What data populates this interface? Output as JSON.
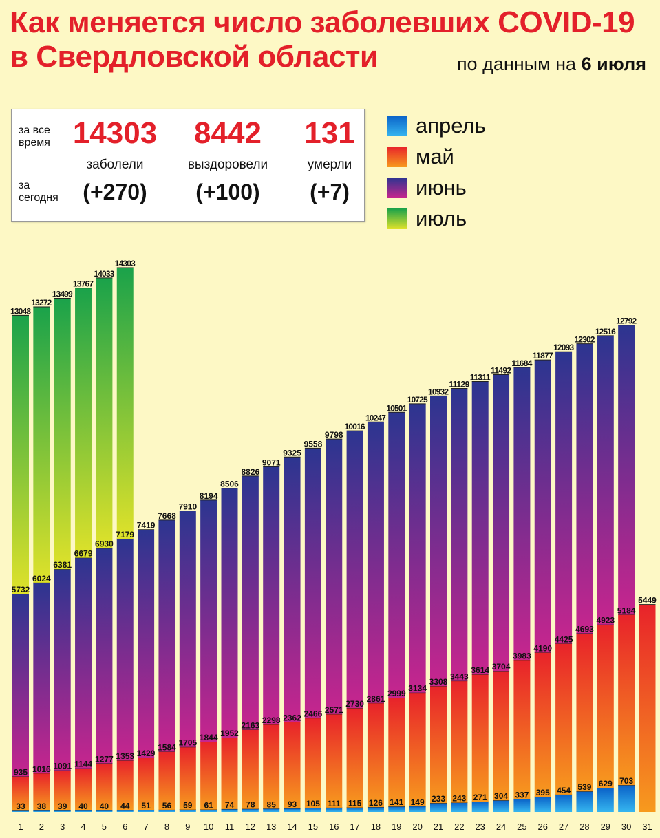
{
  "title_line1": "Как  меняется число  заболевших COVID-19",
  "title_line2": "в Свердловской области",
  "subtitle_prefix": "по данным на ",
  "subtitle_date": "6 июля",
  "stats": {
    "all_time_label_1": "за все",
    "all_time_label_2": "время",
    "today_label_1": "за",
    "today_label_2": "сегодня",
    "sick_total": "14303",
    "sick_label": "заболели",
    "sick_today": "(+270)",
    "recovered_total": "8442",
    "recovered_label": "выздоровели",
    "recovered_today": "(+100)",
    "died_total": "131",
    "died_label": "умерли",
    "died_today": "(+7)"
  },
  "legend": [
    {
      "label": "апрель",
      "color_top": "#0a62c8",
      "color_bottom": "#35b5ef"
    },
    {
      "label": "май",
      "color_top": "#e8232a",
      "color_bottom": "#f79a1e"
    },
    {
      "label": "июнь",
      "color_top": "#2c3590",
      "color_bottom": "#c7258e"
    },
    {
      "label": "июль",
      "color_top": "#1aa24a",
      "color_bottom": "#dfe22a"
    }
  ],
  "chart_data": {
    "type": "bar",
    "x": [
      1,
      2,
      3,
      4,
      5,
      6,
      7,
      8,
      9,
      10,
      11,
      12,
      13,
      14,
      15,
      16,
      17,
      18,
      19,
      20,
      21,
      22,
      23,
      24,
      25,
      26,
      27,
      28,
      29,
      30,
      31
    ],
    "series": [
      {
        "name": "апрель",
        "values": [
          33,
          38,
          39,
          40,
          40,
          44,
          51,
          56,
          59,
          61,
          74,
          78,
          85,
          93,
          105,
          111,
          115,
          126,
          141,
          149,
          233,
          243,
          271,
          304,
          337,
          395,
          454,
          539,
          629,
          703,
          null
        ]
      },
      {
        "name": "май",
        "values": [
          935,
          1016,
          1091,
          1144,
          1277,
          1353,
          1429,
          1584,
          1705,
          1844,
          1952,
          2163,
          2298,
          2362,
          2466,
          2571,
          2730,
          2861,
          2999,
          3134,
          3308,
          3443,
          3614,
          3704,
          3983,
          4190,
          4425,
          4693,
          4923,
          5184,
          5449
        ]
      },
      {
        "name": "июнь",
        "values": [
          5732,
          6024,
          6381,
          6679,
          6930,
          7179,
          7419,
          7668,
          7910,
          8194,
          8506,
          8826,
          9071,
          9325,
          9558,
          9798,
          10016,
          10247,
          10501,
          10725,
          10932,
          11129,
          11311,
          11492,
          11684,
          11877,
          12093,
          12302,
          12516,
          12792,
          null
        ]
      },
      {
        "name": "июль",
        "values": [
          13048,
          13272,
          13499,
          13767,
          14033,
          14303,
          null,
          null,
          null,
          null,
          null,
          null,
          null,
          null,
          null,
          null,
          null,
          null,
          null,
          null,
          null,
          null,
          null,
          null,
          null,
          null,
          null,
          null,
          null,
          null,
          null
        ]
      }
    ],
    "ylim": [
      0,
      14303
    ]
  }
}
